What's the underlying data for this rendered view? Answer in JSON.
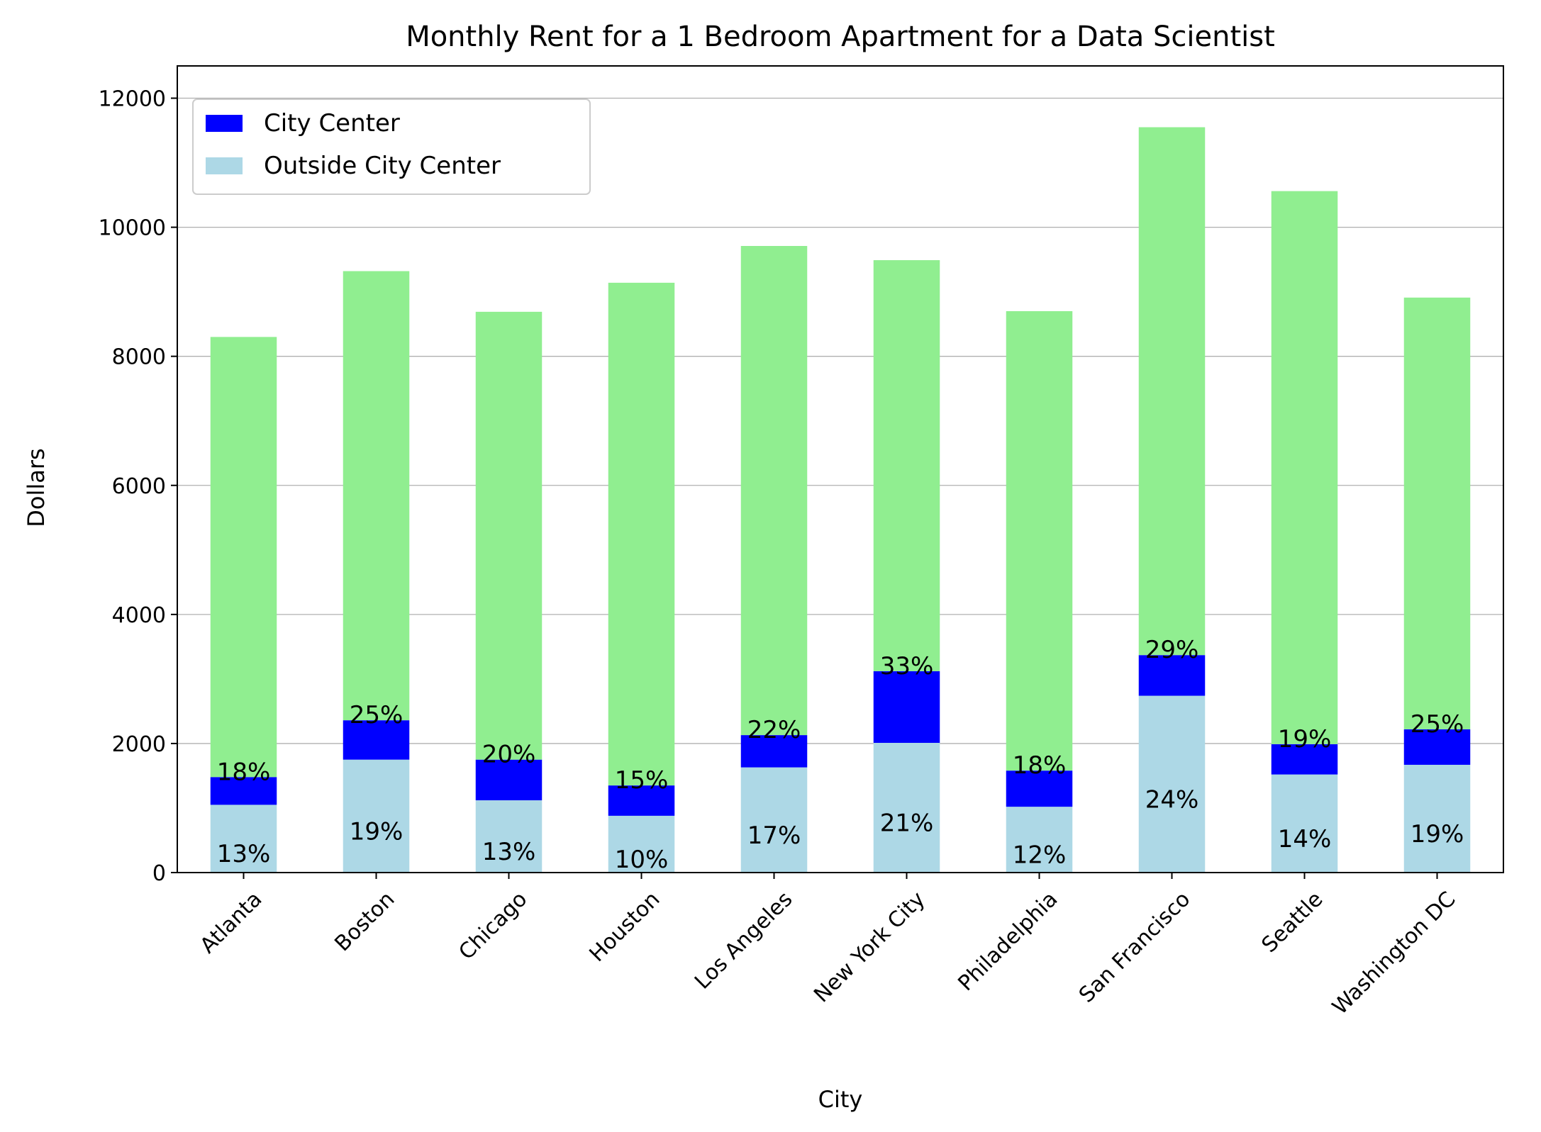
{
  "chart_data": {
    "type": "bar",
    "stacked": true,
    "title": "Monthly Rent for a 1 Bedroom Apartment for a Data Scientist",
    "xlabel": "City",
    "ylabel": "Dollars",
    "ylim": [
      0,
      12500
    ],
    "yticks": [
      0,
      2000,
      4000,
      6000,
      8000,
      10000,
      12000
    ],
    "grid": "horizontal",
    "legend_position": "top-left",
    "categories": [
      "Atlanta",
      "Boston",
      "Chicago",
      "Houston",
      "Los Angeles",
      "New York City",
      "Philadelphia",
      "San Francisco",
      "Seattle",
      "Washington DC"
    ],
    "series": [
      {
        "name": "Outside City Center",
        "color": "#add8e6",
        "values": [
          1050,
          1750,
          1120,
          880,
          1630,
          2010,
          1020,
          2740,
          1520,
          1670
        ],
        "labels": [
          "13%",
          "19%",
          "13%",
          "10%",
          "17%",
          "21%",
          "12%",
          "24%",
          "14%",
          "19%"
        ]
      },
      {
        "name": "City Center",
        "color": "#0000ff",
        "values": [
          430,
          610,
          630,
          470,
          500,
          1110,
          560,
          630,
          470,
          550
        ],
        "labels": [
          "18%",
          "25%",
          "20%",
          "15%",
          "22%",
          "33%",
          "18%",
          "29%",
          "19%",
          "25%"
        ]
      },
      {
        "color": "#90ee90",
        "values": [
          6820,
          6960,
          6940,
          7790,
          7580,
          6370,
          7120,
          8180,
          8570,
          6690
        ]
      }
    ],
    "legend": [
      {
        "name": "City Center",
        "color": "#0000ff"
      },
      {
        "name": "Outside City Center",
        "color": "#add8e6"
      }
    ]
  }
}
